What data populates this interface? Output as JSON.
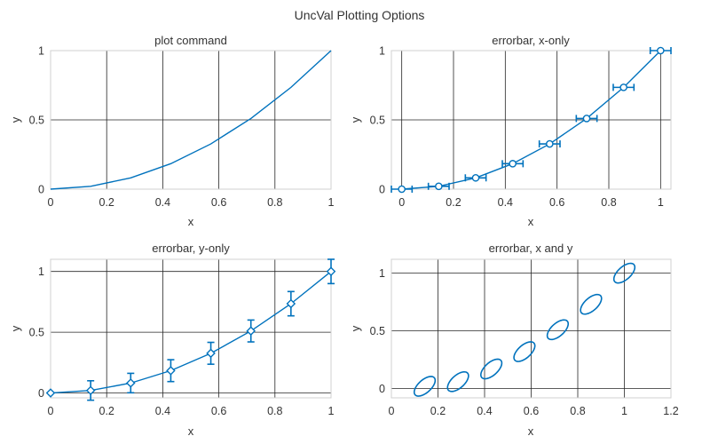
{
  "figure_title": "UncVal Plotting Options",
  "colors": {
    "series": "#0072bd",
    "grid": "#262626",
    "text": "#333333"
  },
  "chart_data": [
    {
      "type": "line",
      "title": "plot command",
      "xlabel": "x",
      "ylabel": "y",
      "xlim": [
        0,
        1
      ],
      "ylim": [
        0,
        1
      ],
      "xticks": [
        0,
        0.2,
        0.4,
        0.6,
        0.8,
        1
      ],
      "xtick_labels": [
        "0",
        "0.2",
        "0.4",
        "0.6",
        "0.8",
        "1"
      ],
      "yticks": [
        0,
        0.5,
        1
      ],
      "ytick_labels": [
        "0",
        "0.5",
        "1"
      ],
      "grid": true,
      "marker": "none",
      "x": [
        0,
        0.1429,
        0.2857,
        0.4286,
        0.5714,
        0.7143,
        0.8571,
        1
      ],
      "y": [
        0,
        0.0204,
        0.0816,
        0.1837,
        0.3265,
        0.5102,
        0.7347,
        1
      ]
    },
    {
      "type": "scatter",
      "title": "errorbar, x-only",
      "xlabel": "x",
      "ylabel": "y",
      "xlim": [
        -0.04,
        1.04
      ],
      "ylim": [
        0,
        1
      ],
      "xticks": [
        0,
        0.2,
        0.4,
        0.6,
        0.8,
        1
      ],
      "xtick_labels": [
        "0",
        "0.2",
        "0.4",
        "0.6",
        "0.8",
        "1"
      ],
      "yticks": [
        0,
        0.5,
        1
      ],
      "ytick_labels": [
        "0",
        "0.5",
        "1"
      ],
      "grid": true,
      "marker": "circle",
      "x": [
        0,
        0.1429,
        0.2857,
        0.4286,
        0.5714,
        0.7143,
        0.8571,
        1
      ],
      "y": [
        0,
        0.0204,
        0.0816,
        0.1837,
        0.3265,
        0.5102,
        0.7347,
        1
      ],
      "x_error": [
        0.04,
        0.04,
        0.04,
        0.04,
        0.04,
        0.04,
        0.04,
        0.04
      ]
    },
    {
      "type": "scatter",
      "title": "errorbar, y-only",
      "xlabel": "x",
      "ylabel": "y",
      "xlim": [
        0,
        1
      ],
      "ylim": [
        -0.04,
        1.1
      ],
      "xticks": [
        0,
        0.2,
        0.4,
        0.6,
        0.8,
        1
      ],
      "xtick_labels": [
        "0",
        "0.2",
        "0.4",
        "0.6",
        "0.8",
        "1"
      ],
      "yticks": [
        0,
        0.5,
        1
      ],
      "ytick_labels": [
        "0",
        "0.5",
        "1"
      ],
      "grid": true,
      "marker": "diamond",
      "x": [
        0,
        0.1429,
        0.2857,
        0.4286,
        0.5714,
        0.7143,
        0.8571,
        1
      ],
      "y": [
        0,
        0.0204,
        0.0816,
        0.1837,
        0.3265,
        0.5102,
        0.7347,
        1
      ],
      "y_error": [
        0,
        0.08,
        0.08,
        0.09,
        0.09,
        0.09,
        0.1,
        0.1
      ]
    },
    {
      "type": "scatter",
      "title": "errorbar, x and y",
      "xlabel": "x",
      "ylabel": "y",
      "xlim": [
        0,
        1.2
      ],
      "ylim": [
        -0.08,
        1.12
      ],
      "xticks": [
        0,
        0.2,
        0.4,
        0.6,
        0.8,
        1,
        1.2
      ],
      "xtick_labels": [
        "0",
        "0.2",
        "0.4",
        "0.6",
        "0.8",
        "1",
        "1.2"
      ],
      "yticks": [
        0,
        0.5,
        1
      ],
      "ytick_labels": [
        "0",
        "0.5",
        "1"
      ],
      "grid": true,
      "marker": "uncertainty-ellipse",
      "x": [
        0.143,
        0.286,
        0.429,
        0.571,
        0.714,
        0.857,
        1.0
      ],
      "y": [
        0.02,
        0.06,
        0.17,
        0.32,
        0.51,
        0.73,
        1.0
      ],
      "ellipse_x_halfwidth": 0.045,
      "ellipse_y_halfwidth": 0.085,
      "ellipse_correlation": 0.6
    }
  ]
}
